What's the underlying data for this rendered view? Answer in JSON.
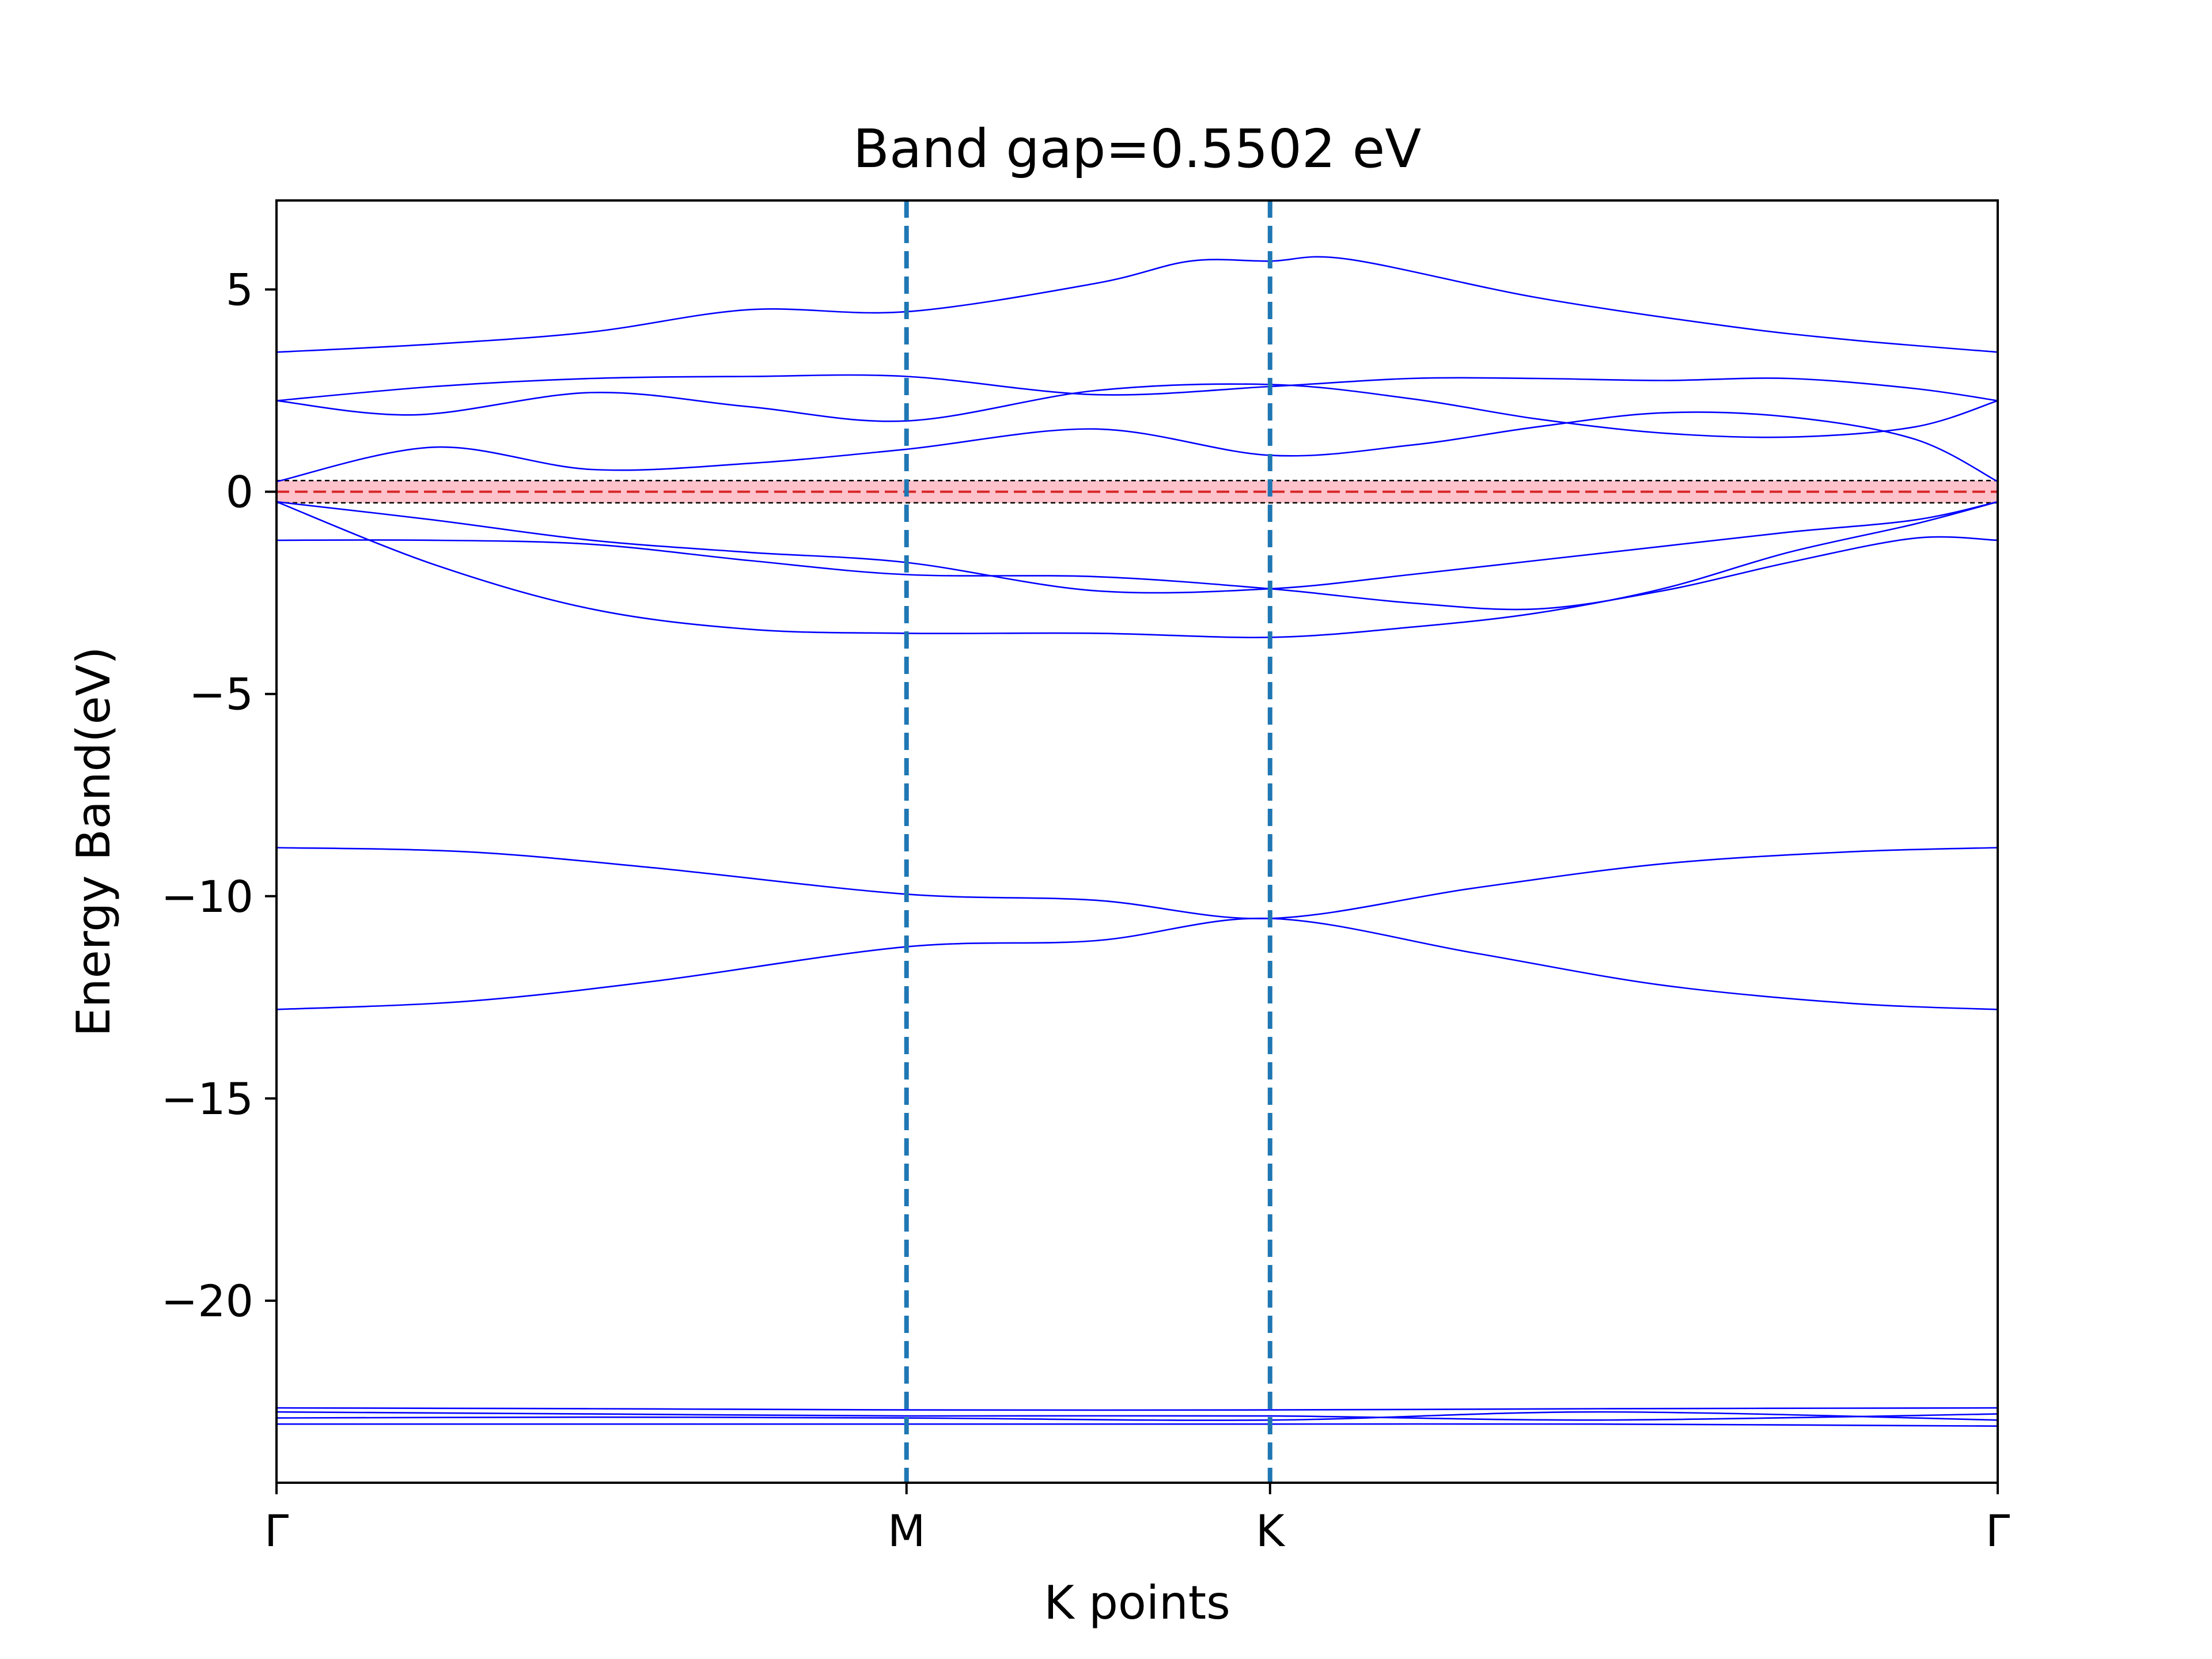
{
  "chart_data": {
    "type": "line",
    "title": "Band gap=0.5502 eV",
    "xlabel": "K points",
    "ylabel": "Energy Band(eV)",
    "xlim": [
      0,
      2.732
    ],
    "ylim": [
      -24.5,
      7.2
    ],
    "xticks": [
      {
        "x": 0,
        "label": "Γ"
      },
      {
        "x": 1.0,
        "label": "M"
      },
      {
        "x": 1.577,
        "label": "K"
      },
      {
        "x": 2.732,
        "label": "Γ"
      }
    ],
    "yticks": [
      {
        "y": 5,
        "label": "5"
      },
      {
        "y": 0,
        "label": "0"
      },
      {
        "y": -5,
        "label": "−5"
      },
      {
        "y": -10,
        "label": "−10"
      },
      {
        "y": -15,
        "label": "−15"
      },
      {
        "y": -20,
        "label": "−20"
      }
    ],
    "high_symmetry_lines": [
      1.0,
      1.577
    ],
    "fermi_level": 0,
    "gap_band": [
      -0.275,
      0.275
    ],
    "colors": {
      "bands": "#0000ff",
      "symmetry_lines": "#1f77b4",
      "fermi": "#d62728",
      "gap_fill": "#ffb6c1",
      "gap_edges": "#000000"
    },
    "series": [
      {
        "x": [
          0,
          0.25,
          0.5,
          0.75,
          1.0,
          1.3,
          1.45,
          1.577,
          1.7,
          2.0,
          2.3,
          2.5,
          2.732
        ],
        "values": [
          3.45,
          3.65,
          3.95,
          4.5,
          4.45,
          5.15,
          5.7,
          5.7,
          5.75,
          4.8,
          4.1,
          3.75,
          3.45
        ]
      },
      {
        "x": [
          0,
          0.25,
          0.5,
          0.75,
          1.0,
          1.3,
          1.577,
          1.8,
          2.0,
          2.2,
          2.4,
          2.6,
          2.732
        ],
        "values": [
          2.25,
          2.6,
          2.8,
          2.85,
          2.85,
          2.4,
          2.6,
          2.8,
          2.8,
          2.75,
          2.8,
          2.55,
          2.25
        ]
      },
      {
        "x": [
          0,
          0.22,
          0.5,
          0.75,
          1.0,
          1.3,
          1.577,
          1.8,
          2.0,
          2.2,
          2.4,
          2.6,
          2.732
        ],
        "values": [
          2.25,
          1.9,
          2.45,
          2.1,
          1.75,
          2.5,
          2.65,
          2.3,
          1.8,
          1.45,
          1.35,
          1.6,
          2.25
        ]
      },
      {
        "x": [
          0,
          0.25,
          0.5,
          0.75,
          1.0,
          1.3,
          1.577,
          1.8,
          2.0,
          2.2,
          2.4,
          2.6,
          2.732
        ],
        "values": [
          0.25,
          1.1,
          0.55,
          0.7,
          1.05,
          1.55,
          0.9,
          1.15,
          1.6,
          1.95,
          1.85,
          1.3,
          0.25
        ]
      },
      {
        "x": [
          0,
          0.25,
          0.5,
          0.75,
          1.0,
          1.3,
          1.577,
          1.8,
          2.0,
          2.2,
          2.4,
          2.6,
          2.732
        ],
        "values": [
          -0.25,
          -0.7,
          -1.2,
          -1.5,
          -1.75,
          -2.45,
          -2.4,
          -2.05,
          -1.7,
          -1.35,
          -1.0,
          -0.7,
          -0.25
        ]
      },
      {
        "x": [
          0,
          0.25,
          0.5,
          0.75,
          1.0,
          1.3,
          1.577,
          1.8,
          2.0,
          2.2,
          2.4,
          2.6,
          2.732
        ],
        "values": [
          -1.2,
          -1.2,
          -1.3,
          -1.7,
          -2.05,
          -2.1,
          -2.4,
          -2.75,
          -2.9,
          -2.45,
          -1.75,
          -1.15,
          -1.2
        ]
      },
      {
        "x": [
          0,
          0.25,
          0.5,
          0.75,
          1.0,
          1.3,
          1.577,
          1.8,
          2.0,
          2.2,
          2.4,
          2.6,
          2.732
        ],
        "values": [
          -0.25,
          -1.8,
          -2.9,
          -3.4,
          -3.5,
          -3.5,
          -3.6,
          -3.35,
          -3.0,
          -2.4,
          -1.5,
          -0.8,
          -0.25
        ]
      },
      {
        "x": [
          0,
          0.3,
          0.6,
          1.0,
          1.3,
          1.577,
          1.9,
          2.2,
          2.5,
          2.732
        ],
        "values": [
          -8.8,
          -8.9,
          -9.3,
          -9.95,
          -10.1,
          -10.55,
          -9.8,
          -9.2,
          -8.9,
          -8.8
        ]
      },
      {
        "x": [
          0,
          0.3,
          0.6,
          1.0,
          1.3,
          1.577,
          1.9,
          2.2,
          2.5,
          2.732
        ],
        "values": [
          -12.8,
          -12.6,
          -12.1,
          -11.25,
          -11.1,
          -10.55,
          -11.4,
          -12.2,
          -12.65,
          -12.8
        ]
      },
      {
        "x": [
          0,
          0.5,
          1.0,
          1.577,
          2.1,
          2.732
        ],
        "values": [
          -22.65,
          -22.67,
          -22.7,
          -22.7,
          -22.67,
          -22.65
        ]
      },
      {
        "x": [
          0,
          0.5,
          1.0,
          1.577,
          2.1,
          2.732
        ],
        "values": [
          -22.75,
          -22.8,
          -22.85,
          -22.85,
          -22.95,
          -22.8
        ]
      },
      {
        "x": [
          0,
          0.5,
          1.0,
          1.577,
          2.1,
          2.732
        ],
        "values": [
          -22.9,
          -22.88,
          -22.9,
          -22.95,
          -22.75,
          -22.95
        ]
      },
      {
        "x": [
          0,
          0.5,
          1.0,
          1.577,
          2.1,
          2.732
        ],
        "values": [
          -23.05,
          -23.05,
          -23.05,
          -23.05,
          -23.05,
          -23.1
        ]
      }
    ]
  }
}
